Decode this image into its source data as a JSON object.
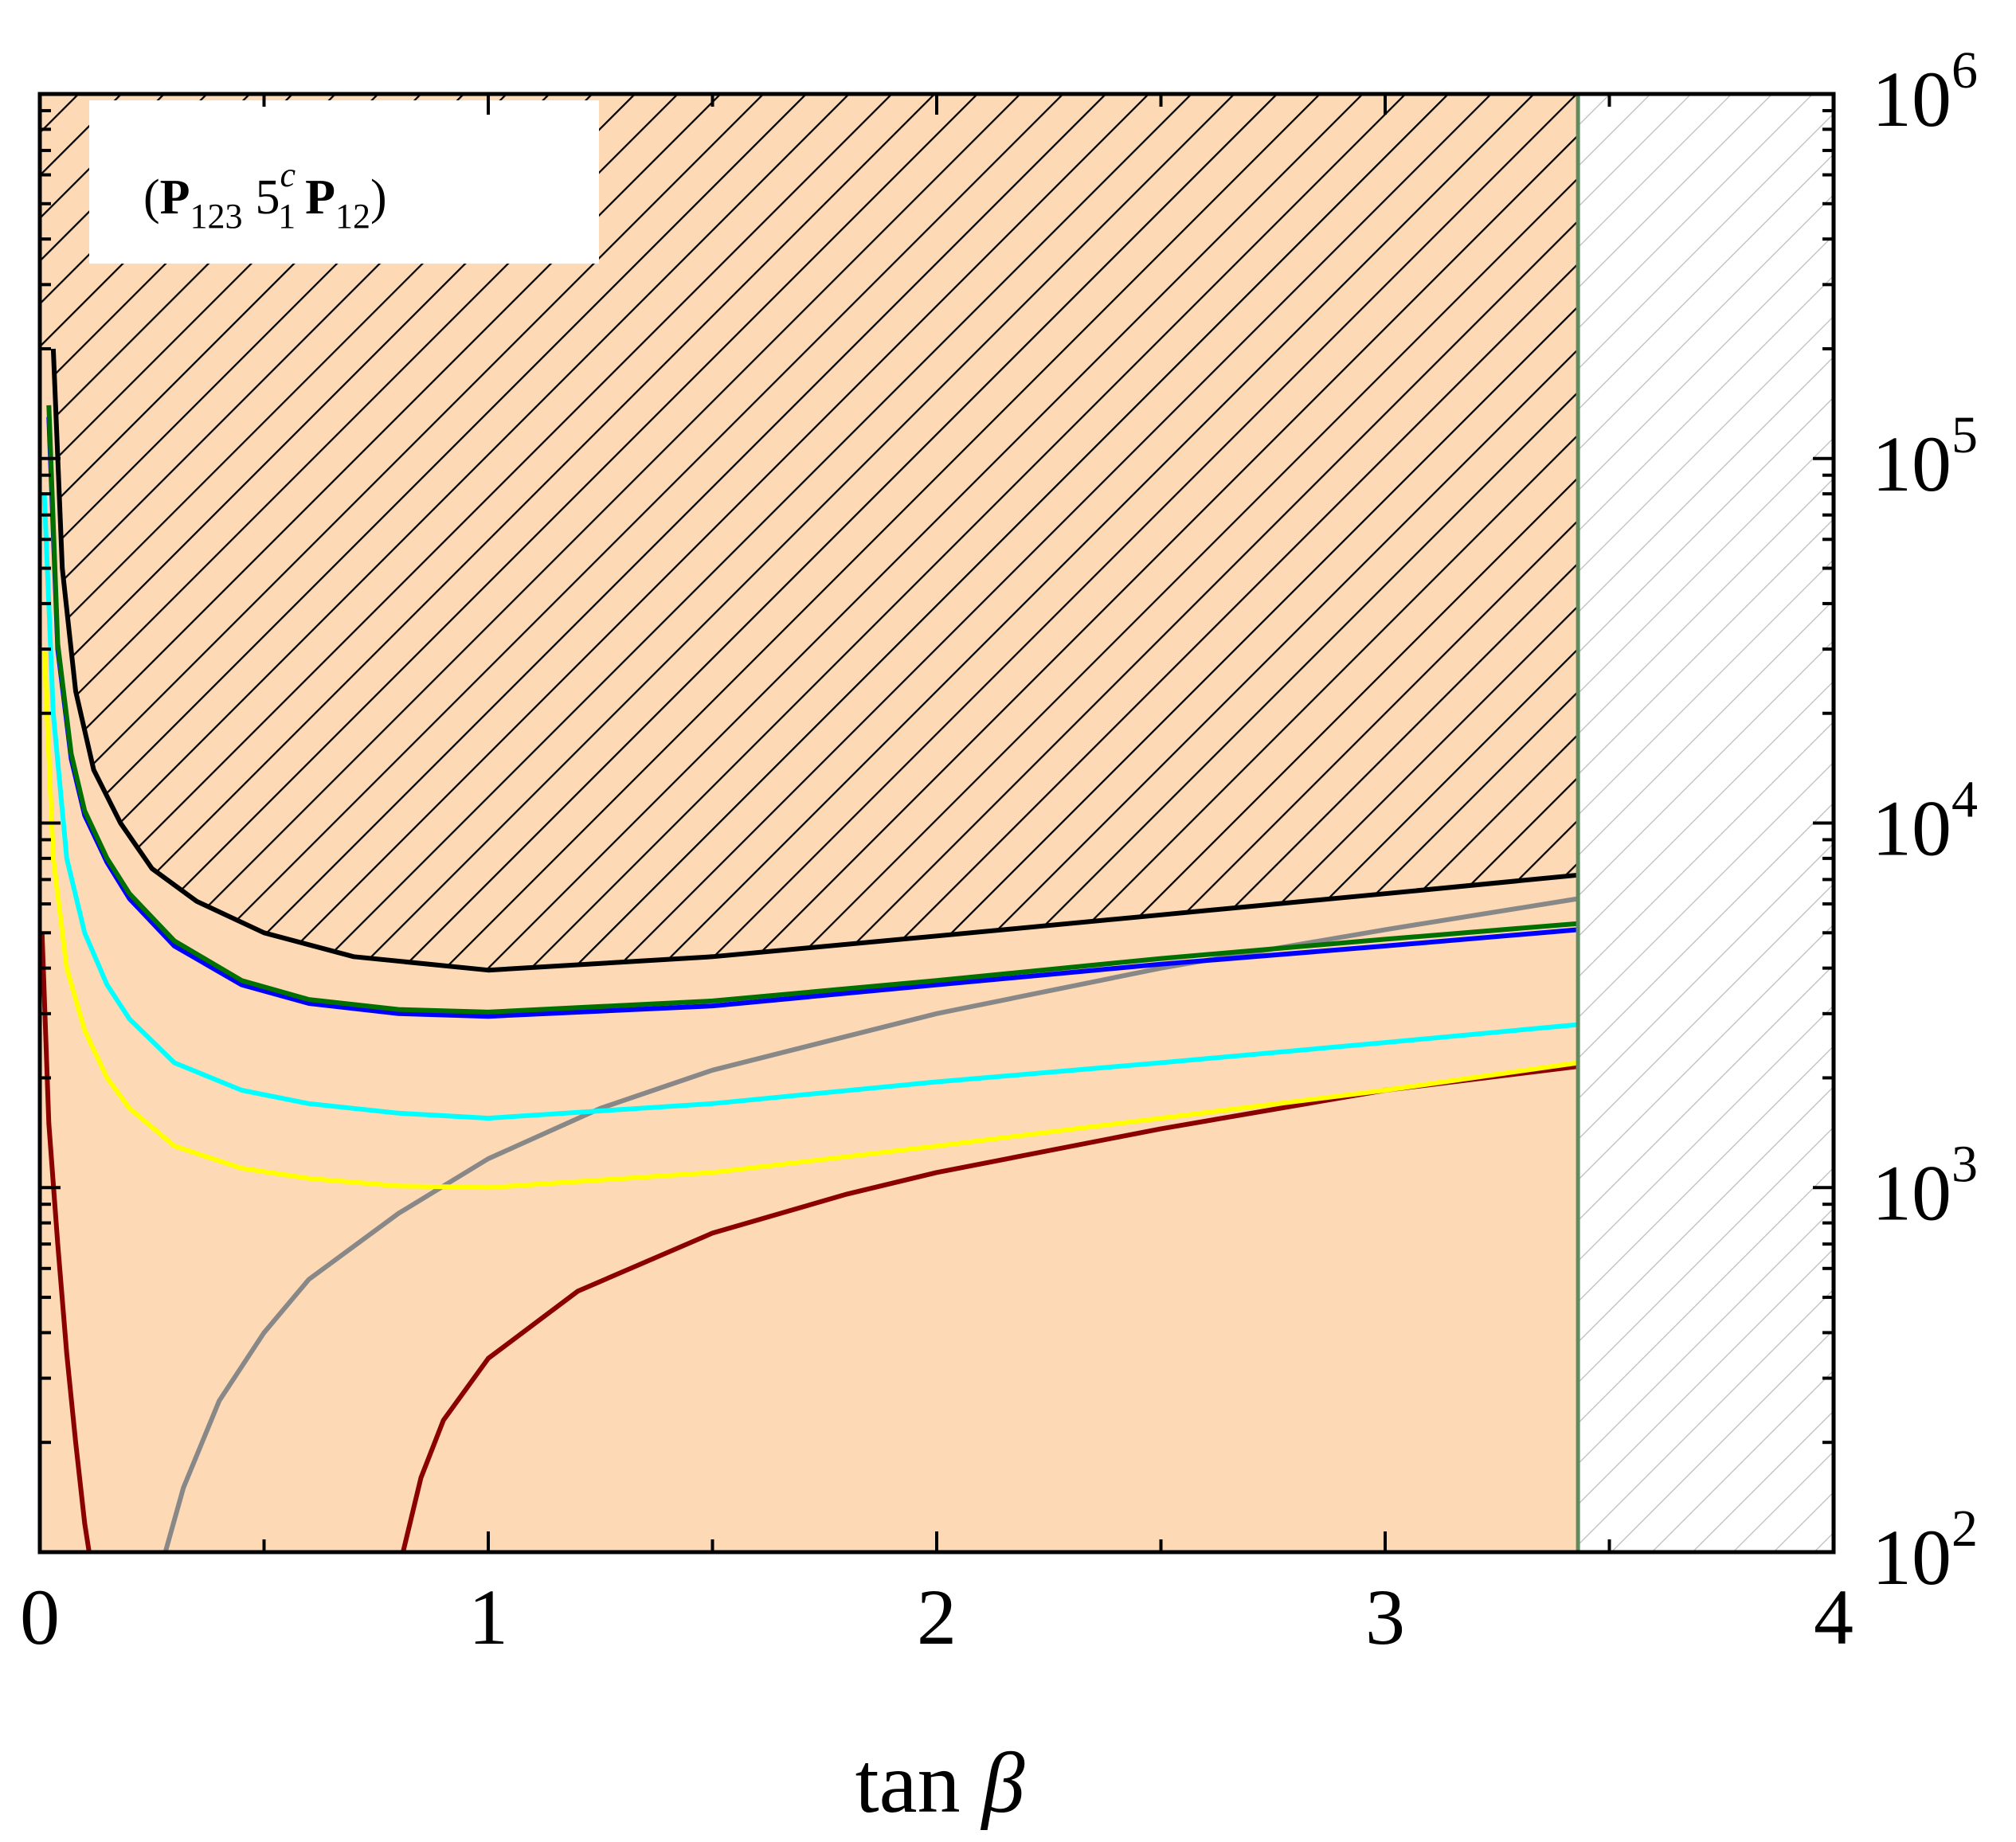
{
  "chart_data": {
    "type": "line",
    "xlabel_main": "tan ",
    "xlabel_symbol": "β",
    "ylabel": "",
    "xlim": [
      0,
      4
    ],
    "ylim_log10": [
      2,
      6
    ],
    "x_ticks": [
      "0",
      "1",
      "2",
      "3",
      "4"
    ],
    "y_ticks": [
      {
        "base": "10",
        "exp": "2"
      },
      {
        "base": "10",
        "exp": "3"
      },
      {
        "base": "10",
        "exp": "4"
      },
      {
        "base": "10",
        "exp": "5"
      },
      {
        "base": "10",
        "exp": "6"
      }
    ],
    "label": {
      "open": "(",
      "p1": "P",
      "p1_sub": "123",
      "mid": "5",
      "mid_sup": "c",
      "mid_sub": "1",
      "p2": "P",
      "p2_sub": "12",
      "close": ")"
    },
    "cutoff_tan_beta": 3.43,
    "colors": {
      "allowed_region": "#FDD9B5",
      "excluded_hatch": "#000000",
      "right_hatch": "#BBBBBB",
      "cutoff_line": "#5E8C5E"
    },
    "series": [
      {
        "name": "boundary",
        "color": "#000000",
        "x": [
          0.03,
          0.05,
          0.08,
          0.12,
          0.18,
          0.25,
          0.35,
          0.5,
          0.7,
          1.0,
          1.5,
          2.0,
          2.5,
          3.0,
          3.43
        ],
        "y": [
          200000,
          50000,
          23000,
          14000,
          10000,
          7500,
          6100,
          5000,
          4300,
          3950,
          4300,
          4900,
          5600,
          6400,
          7200
        ]
      },
      {
        "name": "blue",
        "color": "#0000FF",
        "x": [
          0.02,
          0.04,
          0.07,
          0.1,
          0.15,
          0.2,
          0.3,
          0.45,
          0.6,
          0.8,
          1.0,
          1.5,
          2.0,
          2.5,
          3.0,
          3.43
        ],
        "y": [
          130000,
          30000,
          15000,
          10500,
          7800,
          6200,
          4600,
          3600,
          3200,
          3000,
          2950,
          3150,
          3600,
          4100,
          4600,
          5100
        ]
      },
      {
        "name": "green",
        "color": "#007000",
        "x": [
          0.02,
          0.04,
          0.07,
          0.1,
          0.15,
          0.2,
          0.3,
          0.45,
          0.6,
          0.8,
          1.0,
          1.5,
          2.0,
          2.5,
          3.0,
          3.43
        ],
        "y": [
          140000,
          31000,
          15500,
          10800,
          8000,
          6400,
          4750,
          3700,
          3280,
          3080,
          3030,
          3250,
          3700,
          4250,
          4800,
          5300
        ]
      },
      {
        "name": "cyan",
        "color": "#00FFFF",
        "x": [
          0.01,
          0.03,
          0.06,
          0.1,
          0.15,
          0.2,
          0.3,
          0.45,
          0.6,
          0.8,
          1.0,
          1.5,
          2.0,
          2.5,
          3.0,
          3.43
        ],
        "y": [
          80000,
          20000,
          8000,
          5000,
          3600,
          2900,
          2200,
          1850,
          1700,
          1600,
          1550,
          1700,
          1950,
          2200,
          2500,
          2800
        ]
      },
      {
        "name": "yellow",
        "color": "#FFFF00",
        "x": [
          0.01,
          0.03,
          0.06,
          0.1,
          0.15,
          0.2,
          0.3,
          0.45,
          0.6,
          0.8,
          1.0,
          1.5,
          2.0,
          2.5,
          3.0,
          3.43
        ],
        "y": [
          30000,
          8000,
          4000,
          2700,
          2000,
          1650,
          1300,
          1130,
          1060,
          1010,
          1000,
          1100,
          1300,
          1550,
          1850,
          2200
        ]
      },
      {
        "name": "gray",
        "color": "#888888",
        "x": [
          0.28,
          0.32,
          0.4,
          0.5,
          0.6,
          0.8,
          1.0,
          1.25,
          1.5,
          2.0,
          2.5,
          3.0,
          3.43
        ],
        "y": [
          100,
          150,
          260,
          400,
          560,
          850,
          1200,
          1650,
          2100,
          3000,
          4000,
          5100,
          6200
        ]
      },
      {
        "name": "darkred_left",
        "color": "#8B0000",
        "x": [
          0.005,
          0.02,
          0.04,
          0.06,
          0.08,
          0.1,
          0.11
        ],
        "y": [
          5000,
          1500,
          700,
          350,
          200,
          120,
          100
        ]
      },
      {
        "name": "darkred_right",
        "color": "#8B0000",
        "x": [
          0.81,
          0.85,
          0.9,
          1.0,
          1.2,
          1.5,
          1.8,
          2.0,
          2.5,
          3.0,
          3.43
        ],
        "y": [
          100,
          160,
          230,
          340,
          520,
          750,
          960,
          1100,
          1450,
          1850,
          2150
        ]
      }
    ]
  }
}
